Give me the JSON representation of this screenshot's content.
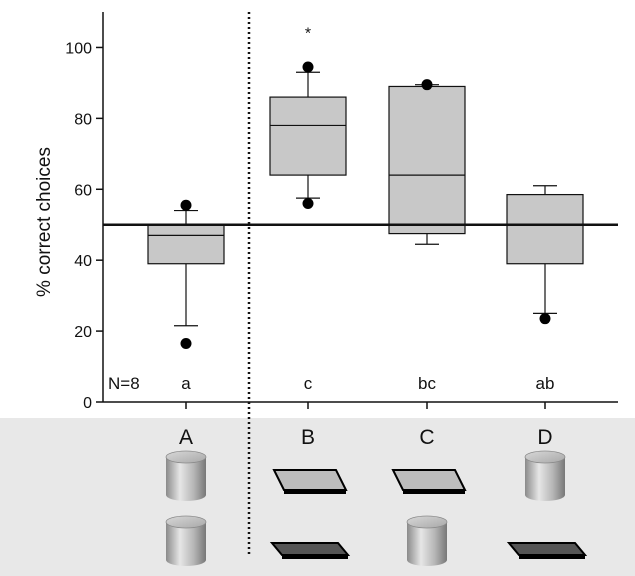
{
  "chart_data": {
    "type": "box",
    "ylabel": "% correct choices",
    "ylim": [
      0,
      110
    ],
    "yticks": [
      0,
      20,
      40,
      60,
      80,
      100
    ],
    "categories": [
      "A",
      "B",
      "C",
      "D"
    ],
    "boxes": [
      {
        "label": "A",
        "whisker_low": 21.5,
        "q1": 39,
        "median": 47,
        "q3": 50,
        "whisker_high": 54,
        "outliers": [
          16.5,
          55.5
        ],
        "significance": "a",
        "star": ""
      },
      {
        "label": "B",
        "whisker_low": 57.5,
        "q1": 64,
        "median": 78,
        "q3": 86,
        "whisker_high": 93,
        "outliers": [
          56,
          94.5
        ],
        "significance": "c",
        "star": "*"
      },
      {
        "label": "C",
        "whisker_low": 44.5,
        "q1": 47.5,
        "median": 64,
        "q3": 89,
        "whisker_high": 89.5,
        "outliers": [
          89.5
        ],
        "significance": "bc",
        "star": ""
      },
      {
        "label": "D",
        "whisker_low": 25,
        "q1": 39,
        "median": 50,
        "q3": 58.5,
        "whisker_high": 61,
        "outliers": [
          23.5
        ],
        "significance": "ab",
        "star": ""
      }
    ],
    "chance_level": 50,
    "sample_size_label": "N=8",
    "colors": {
      "box_fill": "#c8c8c8",
      "panel_bg": "#e8e8e8",
      "line": "#111111"
    }
  },
  "stimuli": {
    "A": [
      "cylinder",
      "cylinder"
    ],
    "B": [
      "plate-light",
      "plate-dark"
    ],
    "C": [
      "plate-light",
      "cylinder"
    ],
    "D": [
      "cylinder",
      "plate-dark"
    ]
  }
}
